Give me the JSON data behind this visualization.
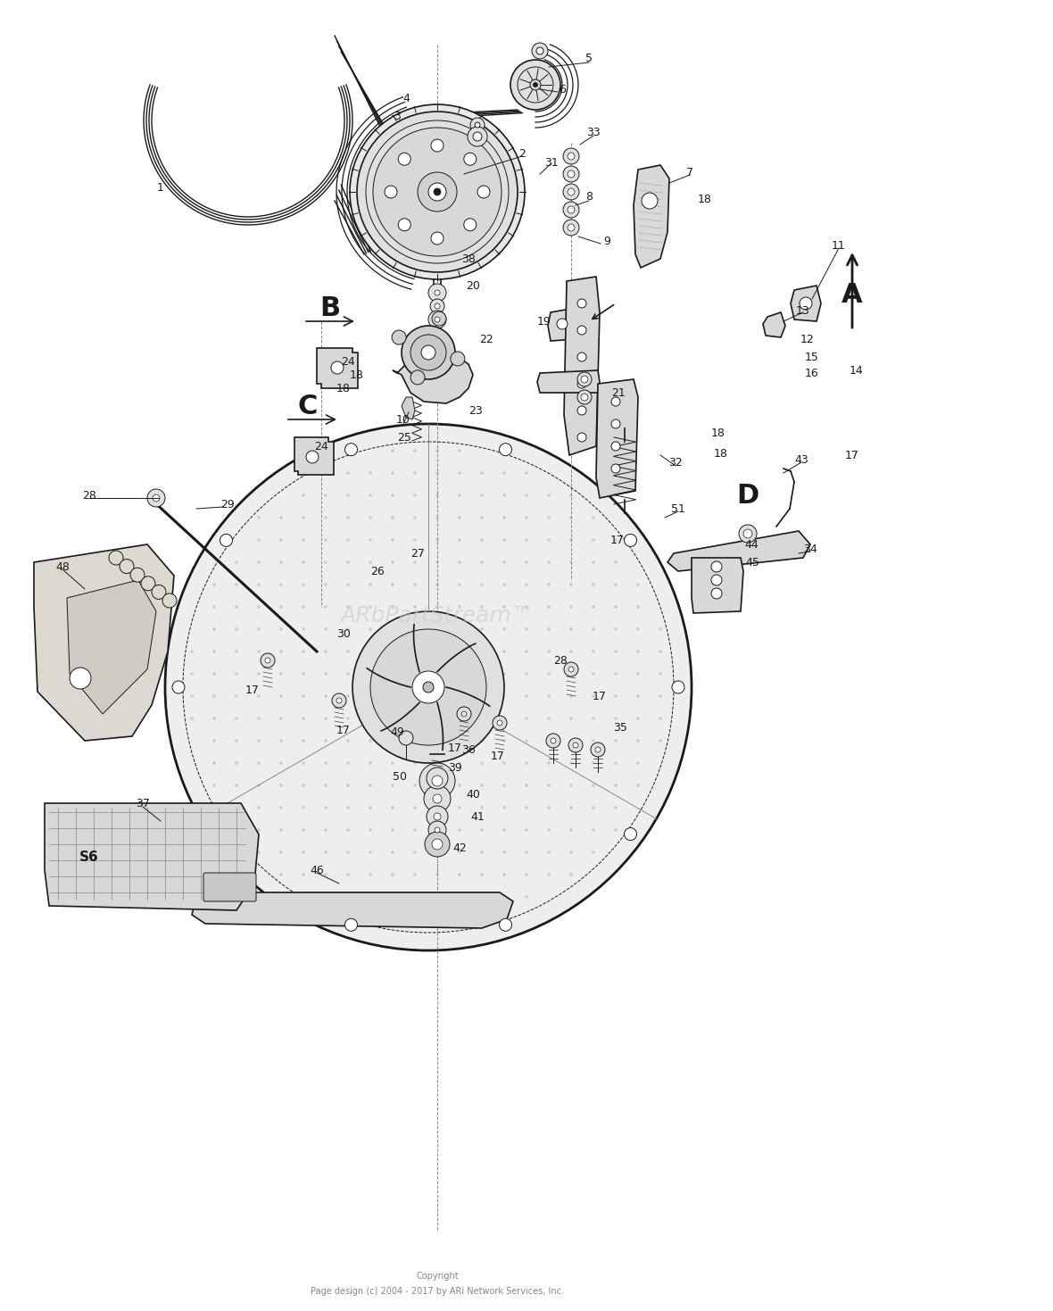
{
  "background_color": "#ffffff",
  "line_color": "#1a1a1a",
  "watermark": "ARbPartStream™",
  "copyright_line1": "Copyright",
  "copyright_line2": "Page design (c) 2004 - 2017 by ARi Network Services, Inc.",
  "figsize": [
    11.8,
    14.69
  ],
  "dpi": 100
}
